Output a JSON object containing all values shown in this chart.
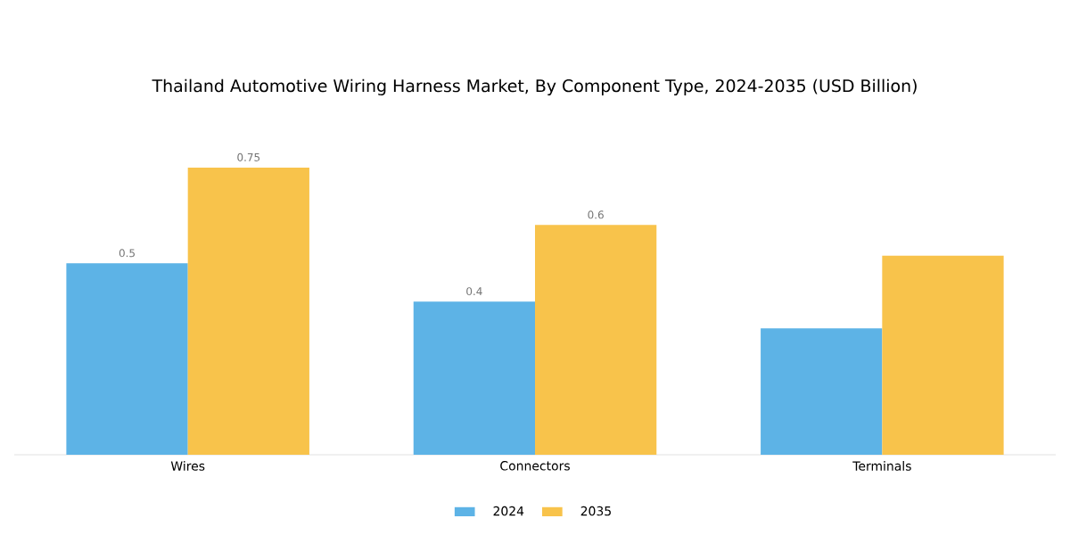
{
  "chart_data": {
    "type": "bar",
    "title": "Thailand Automotive Wiring Harness Market, By Component Type, 2024-2035 (USD Billion)",
    "categories": [
      "Wires",
      "Connectors",
      "Terminals"
    ],
    "series": [
      {
        "name": "2024",
        "color": "#5db3e6",
        "values": [
          0.5,
          0.4,
          0.33
        ],
        "value_labels": [
          "0.5",
          "0.4",
          null
        ]
      },
      {
        "name": "2035",
        "color": "#f8c34b",
        "values": [
          0.75,
          0.6,
          0.52
        ],
        "value_labels": [
          "0.75",
          "0.6",
          null
        ]
      }
    ],
    "legend": "bottom",
    "grid": false
  }
}
